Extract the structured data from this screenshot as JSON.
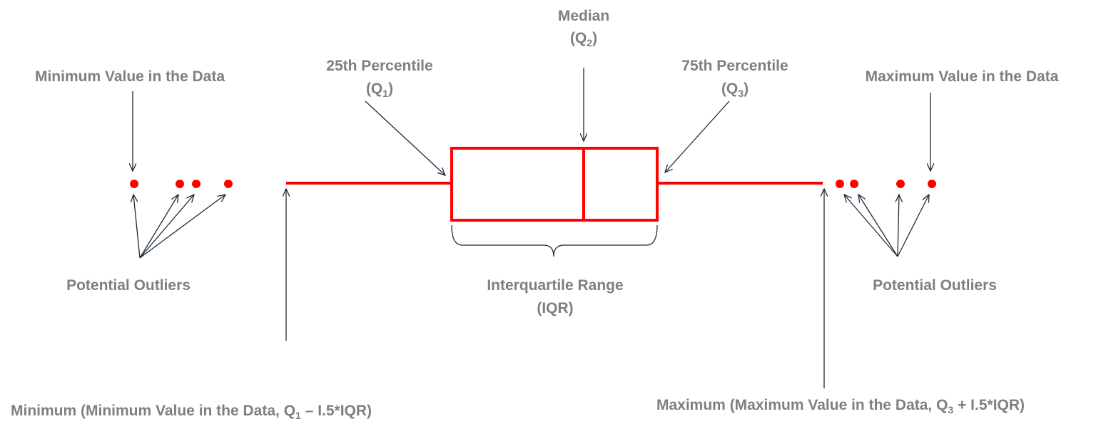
{
  "labels": {
    "min_value": "Minimum Value in the Data",
    "max_value": "Maximum Value in the Data",
    "q1_title": "25th Percentile",
    "q1_sym": "(Q",
    "q1_sub": "1",
    "q1_close": ")",
    "median_title": "Median",
    "q2_sym": "(Q",
    "q2_sub": "2",
    "q2_close": ")",
    "q3_title": "75th Percentile",
    "q3_sym": "(Q",
    "q3_sub": "3",
    "q3_close": ")",
    "outliers_left": "Potential Outliers",
    "outliers_right": "Potential Outliers",
    "iqr_title": "Interquartile Range",
    "iqr_abbr": "(IQR)",
    "minimum_a": "Minimum (Minimum Value in the Data, Q",
    "minimum_sub": "1",
    "minimum_b": " – I.5*IQR)",
    "maximum_a": "Maximum (Maximum Value in the Data, Q",
    "maximum_sub": "3",
    "maximum_b": " + I.5*IQR)"
  },
  "colors": {
    "box": "#ff0000",
    "text": "#7f7f7f",
    "arrows": "#1f2a3a"
  }
}
